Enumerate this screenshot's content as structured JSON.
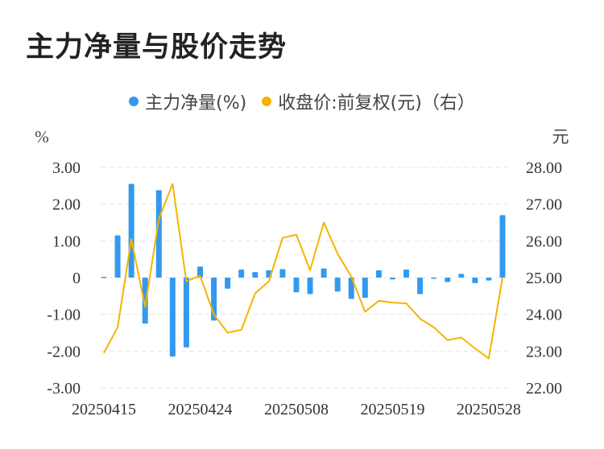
{
  "title": "主力净量与股价走势",
  "colors": {
    "bar": "#3399ee",
    "line": "#f5b400",
    "grid": "#e6e6e6",
    "text": "#333333"
  },
  "chart_data": {
    "type": "bar+line",
    "legend_position": "top",
    "grid": true,
    "left_unit": "%",
    "right_unit": "元",
    "y_left_range": [
      -3,
      3
    ],
    "y_right_range": [
      22,
      28
    ],
    "y_left_ticks": [
      "3.00",
      "2.00",
      "1.00",
      "0",
      "-1.00",
      "-2.00",
      "-3.00"
    ],
    "y_right_ticks": [
      "28.00",
      "27.00",
      "26.00",
      "25.00",
      "24.00",
      "23.00",
      "22.00"
    ],
    "x_tick_labels": [
      {
        "index": 0,
        "label": "20250415"
      },
      {
        "index": 7,
        "label": "20250424"
      },
      {
        "index": 14,
        "label": "20250508"
      },
      {
        "index": 21,
        "label": "20250519"
      },
      {
        "index": 28,
        "label": "20250528"
      }
    ],
    "series": [
      {
        "name": "主力净量(%)",
        "type": "bar",
        "axis": "left",
        "values": [
          0.02,
          1.15,
          2.55,
          -1.25,
          2.38,
          -2.15,
          -1.9,
          0.3,
          -1.17,
          -0.3,
          0.22,
          0.15,
          0.2,
          0.23,
          -0.4,
          -0.45,
          0.25,
          -0.38,
          -0.58,
          -0.55,
          0.2,
          -0.05,
          0.22,
          -0.45,
          -0.03,
          -0.12,
          0.1,
          -0.15,
          -0.08,
          1.7
        ]
      },
      {
        "name": "收盘价:前复权(元)（右）",
        "type": "line",
        "axis": "right",
        "values": [
          22.95,
          23.65,
          26.05,
          24.2,
          26.6,
          27.55,
          24.9,
          25.05,
          24.0,
          23.5,
          23.58,
          24.57,
          24.9,
          26.08,
          26.17,
          25.2,
          26.5,
          25.65,
          25.03,
          24.07,
          24.37,
          24.32,
          24.3,
          23.88,
          23.65,
          23.3,
          23.37,
          23.07,
          22.8,
          25.0
        ]
      }
    ]
  }
}
